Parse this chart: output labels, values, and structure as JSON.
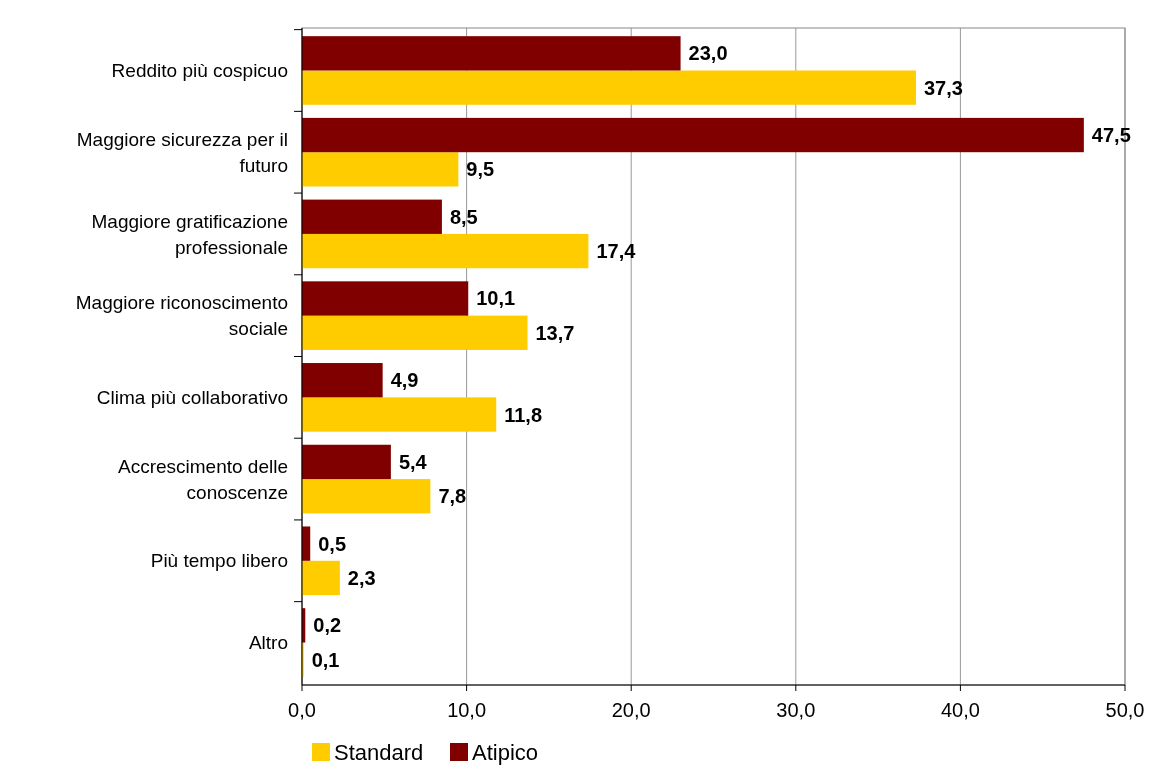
{
  "chart_data": {
    "type": "bar",
    "orientation": "horizontal",
    "categories": [
      "Reddito più cospicuo",
      "Maggiore sicurezza per il futuro",
      "Maggiore gratificazione professionale",
      "Maggiore riconoscimento sociale",
      "Clima più collaborativo",
      "Accrescimento delle conoscenze",
      "Più tempo libero",
      "Altro"
    ],
    "series": [
      {
        "name": "Standard",
        "color": "#ffcc00",
        "values": [
          37.3,
          9.5,
          17.4,
          13.7,
          11.8,
          7.8,
          2.3,
          0.1
        ],
        "value_labels": [
          "37,3",
          "9,5",
          "17,4",
          "13,7",
          "11,8",
          "7,8",
          "2,3",
          "0,1"
        ]
      },
      {
        "name": "Atipico",
        "color": "#800000",
        "values": [
          23.0,
          47.5,
          8.5,
          10.1,
          4.9,
          5.4,
          0.5,
          0.2
        ],
        "value_labels": [
          "23,0",
          "47,5",
          "8,5",
          "10,1",
          "4,9",
          "5,4",
          "0,5",
          "0,2"
        ]
      }
    ],
    "xlim": [
      0,
      50
    ],
    "xticks": [
      {
        "value": 0,
        "label": "0,0"
      },
      {
        "value": 10,
        "label": "10,0"
      },
      {
        "value": 20,
        "label": "20,0"
      },
      {
        "value": 30,
        "label": "30,0"
      },
      {
        "value": 40,
        "label": "40,0"
      },
      {
        "value": 50,
        "label": "50,0"
      }
    ],
    "grid": "x",
    "legend": "bottom"
  }
}
